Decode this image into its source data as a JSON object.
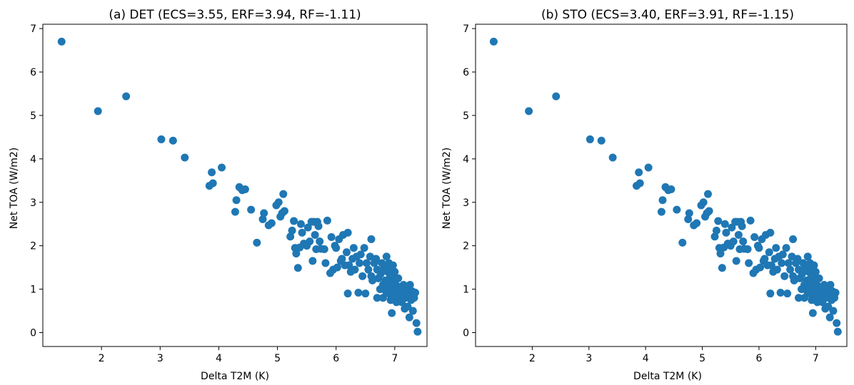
{
  "colors": {
    "marker": "#1f77b4",
    "axes": "#000000",
    "background": "#ffffff"
  },
  "chart_data": [
    {
      "type": "scatter",
      "title": "(a) DET (ECS=3.55, ERF=3.94, RF=-1.11)",
      "xlabel": "Delta T2M (K)",
      "ylabel": "Net TOA (W/m2)",
      "xlim": [
        1.0,
        7.55
      ],
      "ylim": [
        -0.32,
        7.1
      ],
      "xticks": [
        2,
        3,
        4,
        5,
        6,
        7
      ],
      "yticks": [
        0,
        1,
        2,
        3,
        4,
        5,
        6,
        7
      ],
      "grid": false,
      "points": [
        [
          1.32,
          6.7
        ],
        [
          1.94,
          5.1
        ],
        [
          2.42,
          5.44
        ],
        [
          3.02,
          4.45
        ],
        [
          3.22,
          4.42
        ],
        [
          3.42,
          4.03
        ],
        [
          3.84,
          3.38
        ],
        [
          3.88,
          3.69
        ],
        [
          3.9,
          3.44
        ],
        [
          4.05,
          3.8
        ],
        [
          4.28,
          2.78
        ],
        [
          4.3,
          3.05
        ],
        [
          4.35,
          3.35
        ],
        [
          4.4,
          3.28
        ],
        [
          4.45,
          3.3
        ],
        [
          4.55,
          2.83
        ],
        [
          4.65,
          2.07
        ],
        [
          4.75,
          2.61
        ],
        [
          4.77,
          2.75
        ],
        [
          4.85,
          2.47
        ],
        [
          4.9,
          2.52
        ],
        [
          4.98,
          2.93
        ],
        [
          5.02,
          3.0
        ],
        [
          5.05,
          2.67
        ],
        [
          5.08,
          2.75
        ],
        [
          5.1,
          3.19
        ],
        [
          5.12,
          2.8
        ],
        [
          5.22,
          2.21
        ],
        [
          5.25,
          2.35
        ],
        [
          5.28,
          2.57
        ],
        [
          5.3,
          1.95
        ],
        [
          5.32,
          1.82
        ],
        [
          5.35,
          1.49
        ],
        [
          5.38,
          1.96
        ],
        [
          5.4,
          2.5
        ],
        [
          5.42,
          2.3
        ],
        [
          5.45,
          2.05
        ],
        [
          5.5,
          2.0
        ],
        [
          5.52,
          2.42
        ],
        [
          5.55,
          2.1
        ],
        [
          5.58,
          2.55
        ],
        [
          5.6,
          1.65
        ],
        [
          5.62,
          2.55
        ],
        [
          5.64,
          2.25
        ],
        [
          5.66,
          1.92
        ],
        [
          5.68,
          2.55
        ],
        [
          5.7,
          2.45
        ],
        [
          5.72,
          2.1
        ],
        [
          5.74,
          1.93
        ],
        [
          5.8,
          1.92
        ],
        [
          5.82,
          1.6
        ],
        [
          5.85,
          2.58
        ],
        [
          5.9,
          1.37
        ],
        [
          5.92,
          2.2
        ],
        [
          5.95,
          1.45
        ],
        [
          5.98,
          2.0
        ],
        [
          6.0,
          1.95
        ],
        [
          6.02,
          1.5
        ],
        [
          6.05,
          2.15
        ],
        [
          6.08,
          1.65
        ],
        [
          6.1,
          1.7
        ],
        [
          6.12,
          2.25
        ],
        [
          6.15,
          1.55
        ],
        [
          6.18,
          1.85
        ],
        [
          6.2,
          2.3
        ],
        [
          6.2,
          0.9
        ],
        [
          6.22,
          1.55
        ],
        [
          6.25,
          1.4
        ],
        [
          6.28,
          1.7
        ],
        [
          6.3,
          1.95
        ],
        [
          6.32,
          1.45
        ],
        [
          6.35,
          1.75
        ],
        [
          6.38,
          0.92
        ],
        [
          6.4,
          1.6
        ],
        [
          6.42,
          1.8
        ],
        [
          6.45,
          1.3
        ],
        [
          6.48,
          1.95
        ],
        [
          6.5,
          0.9
        ],
        [
          6.52,
          1.6
        ],
        [
          6.55,
          1.45
        ],
        [
          6.58,
          1.75
        ],
        [
          6.6,
          2.15
        ],
        [
          6.6,
          1.3
        ],
        [
          6.62,
          1.2
        ],
        [
          6.65,
          1.6
        ],
        [
          6.68,
          1.7
        ],
        [
          6.7,
          0.8
        ],
        [
          6.7,
          1.45
        ],
        [
          6.72,
          1.25
        ],
        [
          6.75,
          1.0
        ],
        [
          6.76,
          1.35
        ],
        [
          6.78,
          1.6
        ],
        [
          6.8,
          1.1
        ],
        [
          6.8,
          0.8
        ],
        [
          6.82,
          1.5
        ],
        [
          6.84,
          1.2
        ],
        [
          6.85,
          0.95
        ],
        [
          6.86,
          1.75
        ],
        [
          6.88,
          1.4
        ],
        [
          6.88,
          1.05
        ],
        [
          6.9,
          1.6
        ],
        [
          6.9,
          0.9
        ],
        [
          6.91,
          1.25
        ],
        [
          6.92,
          1.45
        ],
        [
          6.93,
          0.75
        ],
        [
          6.94,
          1.1
        ],
        [
          6.95,
          0.45
        ],
        [
          6.95,
          1.3
        ],
        [
          6.96,
          0.95
        ],
        [
          6.97,
          1.55
        ],
        [
          6.98,
          1.05
        ],
        [
          6.99,
          0.8
        ],
        [
          7.0,
          1.2
        ],
        [
          7.0,
          1.4
        ],
        [
          7.01,
          0.9
        ],
        [
          7.02,
          1.1
        ],
        [
          7.03,
          0.7
        ],
        [
          7.05,
          1.0
        ],
        [
          7.06,
          1.25
        ],
        [
          7.08,
          0.85
        ],
        [
          7.1,
          1.05
        ],
        [
          7.12,
          0.7
        ],
        [
          7.13,
          0.95
        ],
        [
          7.15,
          1.1
        ],
        [
          7.17,
          0.55
        ],
        [
          7.18,
          0.8
        ],
        [
          7.2,
          1.0
        ],
        [
          7.22,
          0.6
        ],
        [
          7.24,
          0.9
        ],
        [
          7.25,
          0.35
        ],
        [
          7.26,
          1.1
        ],
        [
          7.28,
          0.75
        ],
        [
          7.3,
          0.95
        ],
        [
          7.31,
          0.5
        ],
        [
          7.33,
          0.8
        ],
        [
          7.35,
          0.92
        ],
        [
          7.37,
          0.22
        ],
        [
          7.39,
          0.02
        ]
      ]
    },
    {
      "type": "scatter",
      "title": "(b) STO (ECS=3.40, ERF=3.91, RF=-1.15)",
      "xlabel": "Delta T2M (K)",
      "ylabel": "Net TOA (W/m2)",
      "xlim": [
        1.0,
        7.55
      ],
      "ylim": [
        -0.32,
        7.1
      ],
      "xticks": [
        2,
        3,
        4,
        5,
        6,
        7
      ],
      "yticks": [
        0,
        1,
        2,
        3,
        4,
        5,
        6,
        7
      ],
      "grid": false,
      "points": [
        [
          1.32,
          6.7
        ],
        [
          1.94,
          5.1
        ],
        [
          2.42,
          5.44
        ],
        [
          3.02,
          4.45
        ],
        [
          3.22,
          4.42
        ],
        [
          3.42,
          4.03
        ],
        [
          3.84,
          3.38
        ],
        [
          3.88,
          3.69
        ],
        [
          3.9,
          3.44
        ],
        [
          4.05,
          3.8
        ],
        [
          4.28,
          2.78
        ],
        [
          4.3,
          3.05
        ],
        [
          4.35,
          3.35
        ],
        [
          4.4,
          3.28
        ],
        [
          4.45,
          3.3
        ],
        [
          4.55,
          2.83
        ],
        [
          4.65,
          2.07
        ],
        [
          4.75,
          2.61
        ],
        [
          4.77,
          2.75
        ],
        [
          4.85,
          2.47
        ],
        [
          4.9,
          2.52
        ],
        [
          4.98,
          2.93
        ],
        [
          5.02,
          3.0
        ],
        [
          5.05,
          2.67
        ],
        [
          5.08,
          2.75
        ],
        [
          5.1,
          3.19
        ],
        [
          5.12,
          2.8
        ],
        [
          5.22,
          2.21
        ],
        [
          5.25,
          2.35
        ],
        [
          5.28,
          2.57
        ],
        [
          5.3,
          1.95
        ],
        [
          5.32,
          1.82
        ],
        [
          5.35,
          1.49
        ],
        [
          5.38,
          1.96
        ],
        [
          5.4,
          2.5
        ],
        [
          5.42,
          2.3
        ],
        [
          5.45,
          2.05
        ],
        [
          5.5,
          2.0
        ],
        [
          5.52,
          2.42
        ],
        [
          5.55,
          2.1
        ],
        [
          5.58,
          2.55
        ],
        [
          5.6,
          1.65
        ],
        [
          5.62,
          2.55
        ],
        [
          5.64,
          2.25
        ],
        [
          5.66,
          1.92
        ],
        [
          5.68,
          2.55
        ],
        [
          5.7,
          2.45
        ],
        [
          5.72,
          2.1
        ],
        [
          5.74,
          1.93
        ],
        [
          5.8,
          1.92
        ],
        [
          5.82,
          1.6
        ],
        [
          5.85,
          2.58
        ],
        [
          5.9,
          1.37
        ],
        [
          5.92,
          2.2
        ],
        [
          5.95,
          1.45
        ],
        [
          5.98,
          2.0
        ],
        [
          6.0,
          1.95
        ],
        [
          6.02,
          1.5
        ],
        [
          6.05,
          2.15
        ],
        [
          6.08,
          1.65
        ],
        [
          6.1,
          1.7
        ],
        [
          6.12,
          2.25
        ],
        [
          6.15,
          1.55
        ],
        [
          6.18,
          1.85
        ],
        [
          6.2,
          2.3
        ],
        [
          6.2,
          0.9
        ],
        [
          6.22,
          1.55
        ],
        [
          6.25,
          1.4
        ],
        [
          6.28,
          1.7
        ],
        [
          6.3,
          1.95
        ],
        [
          6.32,
          1.45
        ],
        [
          6.35,
          1.75
        ],
        [
          6.38,
          0.92
        ],
        [
          6.4,
          1.6
        ],
        [
          6.42,
          1.8
        ],
        [
          6.45,
          1.3
        ],
        [
          6.48,
          1.95
        ],
        [
          6.5,
          0.9
        ],
        [
          6.52,
          1.6
        ],
        [
          6.55,
          1.45
        ],
        [
          6.58,
          1.75
        ],
        [
          6.6,
          2.15
        ],
        [
          6.6,
          1.3
        ],
        [
          6.62,
          1.2
        ],
        [
          6.65,
          1.6
        ],
        [
          6.68,
          1.7
        ],
        [
          6.7,
          0.8
        ],
        [
          6.7,
          1.45
        ],
        [
          6.72,
          1.25
        ],
        [
          6.75,
          1.0
        ],
        [
          6.76,
          1.35
        ],
        [
          6.78,
          1.6
        ],
        [
          6.8,
          1.1
        ],
        [
          6.8,
          0.8
        ],
        [
          6.82,
          1.5
        ],
        [
          6.84,
          1.2
        ],
        [
          6.85,
          0.95
        ],
        [
          6.86,
          1.75
        ],
        [
          6.88,
          1.4
        ],
        [
          6.88,
          1.05
        ],
        [
          6.9,
          1.6
        ],
        [
          6.9,
          0.9
        ],
        [
          6.91,
          1.25
        ],
        [
          6.92,
          1.45
        ],
        [
          6.93,
          0.75
        ],
        [
          6.94,
          1.1
        ],
        [
          6.95,
          0.45
        ],
        [
          6.95,
          1.3
        ],
        [
          6.96,
          0.95
        ],
        [
          6.97,
          1.55
        ],
        [
          6.98,
          1.05
        ],
        [
          6.99,
          0.8
        ],
        [
          7.0,
          1.2
        ],
        [
          7.0,
          1.4
        ],
        [
          7.01,
          0.9
        ],
        [
          7.02,
          1.1
        ],
        [
          7.03,
          0.7
        ],
        [
          7.05,
          1.0
        ],
        [
          7.06,
          1.25
        ],
        [
          7.08,
          0.85
        ],
        [
          7.1,
          1.05
        ],
        [
          7.12,
          0.7
        ],
        [
          7.13,
          0.95
        ],
        [
          7.15,
          1.1
        ],
        [
          7.17,
          0.55
        ],
        [
          7.18,
          0.8
        ],
        [
          7.2,
          1.0
        ],
        [
          7.22,
          0.6
        ],
        [
          7.24,
          0.9
        ],
        [
          7.25,
          0.35
        ],
        [
          7.26,
          1.1
        ],
        [
          7.28,
          0.75
        ],
        [
          7.3,
          0.95
        ],
        [
          7.31,
          0.5
        ],
        [
          7.33,
          0.8
        ],
        [
          7.35,
          0.92
        ],
        [
          7.37,
          0.22
        ],
        [
          7.39,
          0.02
        ]
      ]
    }
  ]
}
